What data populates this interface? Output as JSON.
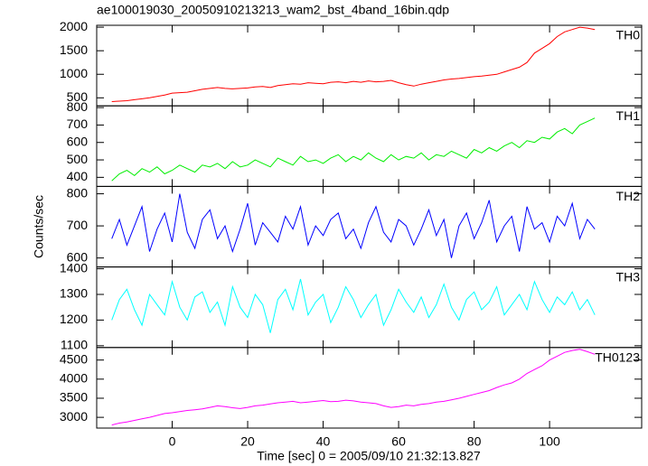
{
  "chart_data": {
    "type": "line",
    "title": "ae100019030_20050910213213_wam2_bst_4band_16bin.qdp",
    "xlabel": "Time [sec] 0 = 2005/09/10 21:32:13.827",
    "ylabel": "Counts/sec",
    "xlim": [
      -20,
      124.4
    ],
    "xticks": [
      0,
      20,
      40,
      60,
      80,
      100
    ],
    "x": [
      -16,
      -14,
      -12,
      -10,
      -8,
      -6,
      -4,
      -2,
      0,
      2,
      4,
      6,
      8,
      10,
      12,
      14,
      16,
      18,
      20,
      22,
      24,
      26,
      28,
      30,
      32,
      34,
      36,
      38,
      40,
      42,
      44,
      46,
      48,
      50,
      52,
      54,
      56,
      58,
      60,
      62,
      64,
      66,
      68,
      70,
      72,
      74,
      76,
      78,
      80,
      82,
      84,
      86,
      88,
      90,
      92,
      94,
      96,
      98,
      100,
      102,
      104,
      106,
      108,
      110,
      112
    ],
    "panels": [
      {
        "name": "TH0",
        "color": "#ff0000",
        "ylim": [
          330,
          2040
        ],
        "yticks": [
          500,
          1000,
          1500,
          2000
        ],
        "values": [
          420,
          430,
          440,
          460,
          480,
          500,
          530,
          560,
          600,
          610,
          620,
          650,
          680,
          700,
          720,
          700,
          690,
          700,
          710,
          730,
          740,
          720,
          760,
          780,
          800,
          790,
          820,
          810,
          800,
          830,
          840,
          820,
          850,
          830,
          860,
          840,
          850,
          870,
          820,
          780,
          750,
          790,
          820,
          850,
          880,
          900,
          910,
          930,
          950,
          960,
          980,
          1000,
          1050,
          1100,
          1150,
          1250,
          1450,
          1550,
          1650,
          1800,
          1900,
          1950,
          2000,
          1980,
          1950
        ]
      },
      {
        "name": "TH1",
        "color": "#00ee00",
        "ylim": [
          348,
          810
        ],
        "yticks": [
          400,
          500,
          600,
          700,
          800
        ],
        "values": [
          380,
          420,
          440,
          410,
          450,
          430,
          460,
          420,
          440,
          470,
          450,
          430,
          470,
          460,
          480,
          450,
          490,
          460,
          470,
          500,
          480,
          460,
          510,
          490,
          470,
          520,
          490,
          500,
          480,
          510,
          530,
          490,
          520,
          500,
          540,
          510,
          490,
          530,
          500,
          520,
          510,
          540,
          500,
          530,
          520,
          550,
          530,
          510,
          560,
          540,
          570,
          550,
          580,
          600,
          570,
          610,
          600,
          630,
          620,
          660,
          680,
          650,
          700,
          720,
          740
        ]
      },
      {
        "name": "TH2",
        "color": "#0000ff",
        "ylim": [
          572,
          823
        ],
        "yticks": [
          600,
          700,
          800
        ],
        "values": [
          660,
          720,
          640,
          700,
          760,
          620,
          690,
          740,
          650,
          800,
          680,
          630,
          720,
          750,
          660,
          700,
          620,
          690,
          770,
          640,
          710,
          680,
          650,
          730,
          690,
          760,
          640,
          700,
          670,
          720,
          740,
          660,
          690,
          630,
          710,
          760,
          680,
          650,
          720,
          700,
          640,
          690,
          750,
          670,
          720,
          600,
          700,
          740,
          660,
          710,
          780,
          650,
          700,
          730,
          620,
          760,
          690,
          710,
          650,
          730,
          700,
          770,
          660,
          720,
          690
        ]
      },
      {
        "name": "TH3",
        "color": "#00ffff",
        "ylim": [
          1093,
          1407
        ],
        "yticks": [
          1100,
          1200,
          1300,
          1400
        ],
        "values": [
          1200,
          1280,
          1320,
          1240,
          1180,
          1300,
          1260,
          1220,
          1350,
          1250,
          1200,
          1290,
          1310,
          1230,
          1270,
          1180,
          1330,
          1250,
          1210,
          1300,
          1260,
          1150,
          1280,
          1320,
          1240,
          1360,
          1220,
          1270,
          1300,
          1190,
          1250,
          1330,
          1280,
          1210,
          1260,
          1300,
          1180,
          1240,
          1320,
          1270,
          1230,
          1290,
          1210,
          1260,
          1340,
          1250,
          1200,
          1280,
          1310,
          1240,
          1270,
          1330,
          1220,
          1260,
          1300,
          1240,
          1350,
          1280,
          1230,
          1290,
          1260,
          1310,
          1240,
          1280,
          1220
        ]
      },
      {
        "name": "TH0123",
        "color": "#ff00ff",
        "ylim": [
          2719,
          4828
        ],
        "yticks": [
          3000,
          3500,
          4000,
          4500
        ],
        "values": [
          2800,
          2850,
          2880,
          2920,
          2960,
          3000,
          3050,
          3100,
          3120,
          3150,
          3180,
          3200,
          3220,
          3260,
          3300,
          3280,
          3250,
          3230,
          3260,
          3300,
          3320,
          3350,
          3380,
          3400,
          3420,
          3380,
          3400,
          3420,
          3440,
          3410,
          3420,
          3450,
          3430,
          3400,
          3380,
          3360,
          3300,
          3260,
          3280,
          3320,
          3300,
          3340,
          3360,
          3400,
          3420,
          3460,
          3500,
          3550,
          3600,
          3650,
          3700,
          3780,
          3850,
          3900,
          4000,
          4150,
          4250,
          4350,
          4500,
          4600,
          4700,
          4750,
          4780,
          4720,
          4650
        ]
      }
    ]
  }
}
